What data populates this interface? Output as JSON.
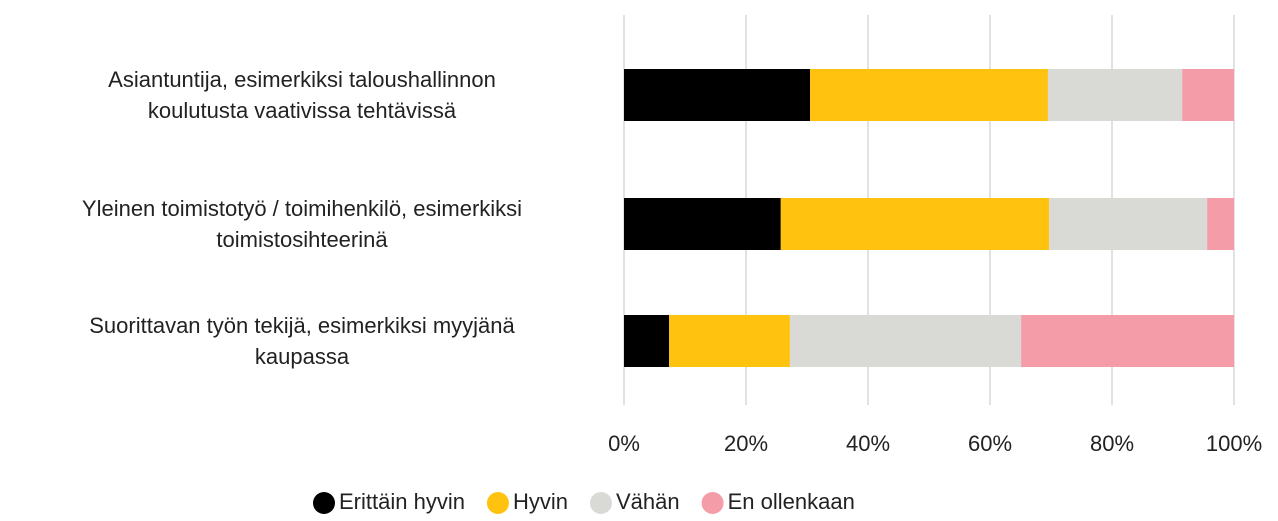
{
  "chart_data": {
    "type": "stacked_barh",
    "categories": [
      "Asiantuntija, esimerkiksi taloushallinnon\nkoulutusta vaativissa tehtävissä",
      "Yleinen toimistotyö / toimihenkilö, esimerkiksi\ntoimistosihteerinä",
      "Suorittavan työn tekijä, esimerkiksi myyjänä\nkaupassa"
    ],
    "series": [
      {
        "name": "Erittäin hyvin",
        "color": "#000000",
        "values": [
          30.5,
          25.7,
          7.4
        ]
      },
      {
        "name": "Hyvin",
        "color": "#FFC20E",
        "values": [
          39,
          44,
          19.8
        ]
      },
      {
        "name": "Vähän",
        "color": "#D9D9D6",
        "values": [
          22,
          25.9,
          37.9
        ]
      },
      {
        "name": "En ollenkaan",
        "color": "#F49CA8",
        "values": [
          8.5,
          4.4,
          34.9
        ]
      }
    ],
    "xlim": [
      0,
      100
    ],
    "xticks": [
      {
        "value": 0,
        "label": "0%"
      },
      {
        "value": 20,
        "label": "20%"
      },
      {
        "value": 40,
        "label": "40%"
      },
      {
        "value": 60,
        "label": "60%"
      },
      {
        "value": 80,
        "label": "80%"
      },
      {
        "value": 100,
        "label": "100%"
      }
    ],
    "grid": true,
    "legend": "bottom"
  }
}
